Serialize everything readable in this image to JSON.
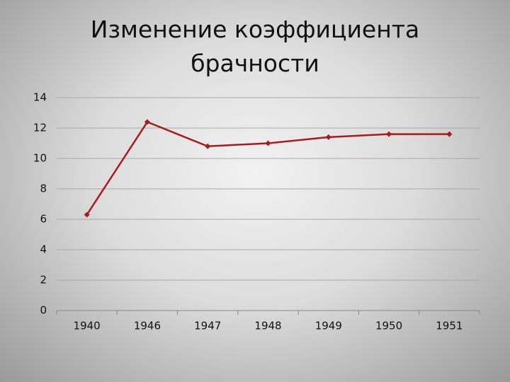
{
  "chart_data": {
    "type": "line",
    "title": "Изменение коэффициента брачности",
    "categories": [
      "1940",
      "1946",
      "1947",
      "1948",
      "1949",
      "1950",
      "1951"
    ],
    "values": [
      6.3,
      12.4,
      10.8,
      11.0,
      11.4,
      11.6,
      11.6
    ],
    "color": "#a51d1d",
    "ylim": [
      0,
      14
    ],
    "yticks": [
      0,
      2,
      4,
      6,
      8,
      10,
      12,
      14
    ],
    "grid": true
  }
}
